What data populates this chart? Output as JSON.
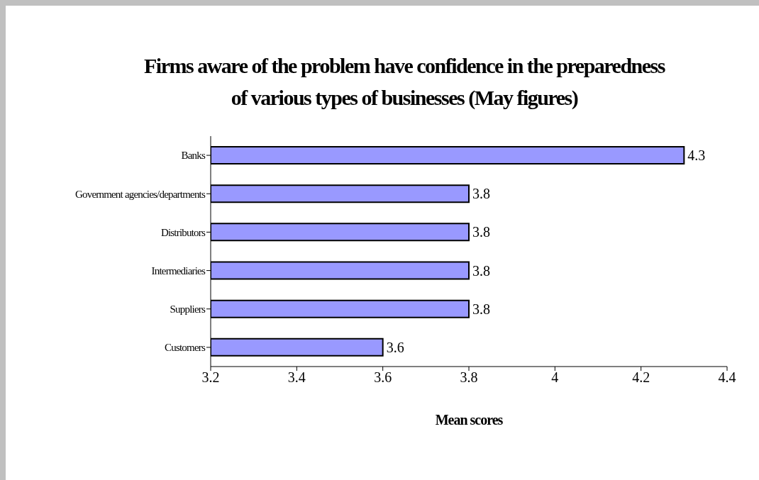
{
  "chart_data": {
    "type": "bar",
    "orientation": "horizontal",
    "title": "Firms aware of the problem have confidence in the preparedness of various types of businesses (May figures)",
    "xlabel": "Mean scores",
    "categories": [
      "Banks",
      "Government agencies/departments",
      "Distributors",
      "Intermediaries",
      "Suppliers",
      "Customers"
    ],
    "values": [
      4.3,
      3.8,
      3.8,
      3.8,
      3.8,
      3.6
    ],
    "color": "#9999ff",
    "xlim": [
      3.2,
      4.4
    ],
    "xticks": [
      3.2,
      3.4,
      3.6,
      3.8,
      4,
      4.2,
      4.4
    ],
    "data_labels": true
  }
}
